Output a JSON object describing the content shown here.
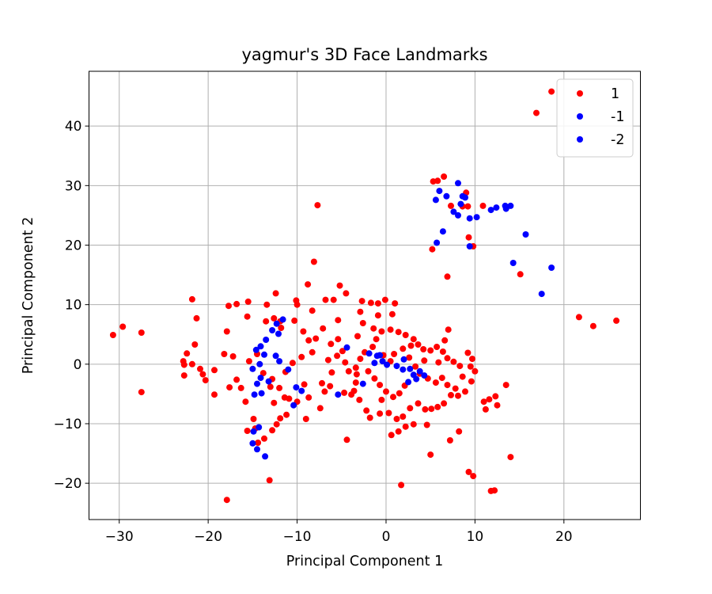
{
  "chart_data": {
    "type": "scatter",
    "title": "yagmur's 3D Face Landmarks",
    "xlabel": "Principal Component 1",
    "ylabel": "Principal Component 2",
    "xlim": [
      -33.4,
      28.6
    ],
    "ylim": [
      -26.1,
      49.2
    ],
    "xticks": [
      -30,
      -20,
      -10,
      0,
      10,
      20
    ],
    "yticks": [
      -20,
      -10,
      0,
      10,
      20,
      30,
      40
    ],
    "xtick_labels": [
      "−30",
      "−20",
      "−10",
      "0",
      "10",
      "20"
    ],
    "ytick_labels": [
      "−20",
      "−10",
      "0",
      "10",
      "20",
      "30",
      "40"
    ],
    "grid": true,
    "legend_position": "top-right",
    "series": [
      {
        "name": "1",
        "color": "#ff0000",
        "points": [
          [
            18.6,
            45.8
          ],
          [
            16.9,
            42.2
          ],
          [
            6.5,
            31.5
          ],
          [
            5.8,
            30.8
          ],
          [
            5.3,
            30.7
          ],
          [
            9.0,
            28.8
          ],
          [
            7.3,
            26.6
          ],
          [
            9.2,
            26.5
          ],
          [
            10.9,
            26.6
          ],
          [
            9.3,
            21.3
          ],
          [
            9.8,
            19.8
          ],
          [
            5.2,
            19.3
          ],
          [
            6.9,
            14.7
          ],
          [
            15.1,
            15.1
          ],
          [
            21.7,
            7.9
          ],
          [
            23.3,
            6.4
          ],
          [
            25.9,
            7.3
          ],
          [
            -7.7,
            26.7
          ],
          [
            -8.1,
            17.2
          ],
          [
            -8.8,
            13.4
          ],
          [
            -5.2,
            13.2
          ],
          [
            -4.5,
            11.9
          ],
          [
            -12.4,
            11.9
          ],
          [
            -21.8,
            10.9
          ],
          [
            -15.5,
            10.5
          ],
          [
            -16.8,
            10.1
          ],
          [
            -17.7,
            9.8
          ],
          [
            -29.6,
            6.3
          ],
          [
            -30.7,
            4.9
          ],
          [
            -27.5,
            5.3
          ],
          [
            -21.3,
            7.7
          ],
          [
            -21.5,
            3.3
          ],
          [
            -22.4,
            1.8
          ],
          [
            -22.8,
            0.5
          ],
          [
            -22.7,
            -0.1
          ],
          [
            -21.8,
            0.0
          ],
          [
            -22.7,
            -1.9
          ],
          [
            -20.9,
            -0.8
          ],
          [
            -20.6,
            -1.7
          ],
          [
            -20.3,
            -2.7
          ],
          [
            -19.3,
            -1.0
          ],
          [
            -19.3,
            -5.1
          ],
          [
            -17.6,
            -3.9
          ],
          [
            -18.2,
            1.7
          ],
          [
            -17.2,
            1.3
          ],
          [
            -17.9,
            5.5
          ],
          [
            -16.8,
            -2.6
          ],
          [
            -16.3,
            -4.0
          ],
          [
            -15.4,
            0.5
          ],
          [
            -15.8,
            -6.3
          ],
          [
            -15.6,
            -11.2
          ],
          [
            -14.9,
            -9.2
          ],
          [
            -14.7,
            -10.8
          ],
          [
            -14.4,
            -13.2
          ],
          [
            -13.7,
            -12.5
          ],
          [
            -13.1,
            -19.5
          ],
          [
            -17.9,
            -22.8
          ],
          [
            -27.5,
            -4.7
          ],
          [
            -13.5,
            7.2
          ],
          [
            -12.6,
            7.7
          ],
          [
            -11.9,
            7.2
          ],
          [
            -10.0,
            10.0
          ],
          [
            -10.1,
            10.7
          ],
          [
            -10.3,
            7.3
          ],
          [
            -9.3,
            5.5
          ],
          [
            -8.7,
            4.0
          ],
          [
            -8.3,
            2.0
          ],
          [
            -9.5,
            1.2
          ],
          [
            -10.5,
            0.2
          ],
          [
            -11.3,
            -1.3
          ],
          [
            -12.8,
            -2.5
          ],
          [
            -12.0,
            -4.0
          ],
          [
            -11.4,
            -5.6
          ],
          [
            -10.9,
            -5.8
          ],
          [
            -10.0,
            -6.3
          ],
          [
            -11.2,
            -8.5
          ],
          [
            -11.9,
            -9.1
          ],
          [
            -12.3,
            -10.1
          ],
          [
            -12.8,
            -11.1
          ],
          [
            -7.4,
            -7.4
          ],
          [
            -6.5,
            0.7
          ],
          [
            -6.2,
            3.4
          ],
          [
            -7.1,
            6.0
          ],
          [
            -6.8,
            10.8
          ],
          [
            -5.9,
            10.8
          ],
          [
            -5.4,
            7.4
          ],
          [
            -5.4,
            4.2
          ],
          [
            -4.9,
            2.2
          ],
          [
            -4.6,
            0.3
          ],
          [
            -4.2,
            -1.2
          ],
          [
            -4.7,
            -4.8
          ],
          [
            -3.6,
            -4.5
          ],
          [
            -3.3,
            -1.7
          ],
          [
            -3.2,
            4.7
          ],
          [
            -2.6,
            6.9
          ],
          [
            -2.9,
            8.8
          ],
          [
            -2.7,
            10.6
          ],
          [
            -1.7,
            10.3
          ],
          [
            -0.9,
            10.2
          ],
          [
            -0.1,
            10.8
          ],
          [
            1.0,
            10.2
          ],
          [
            0.7,
            8.4
          ],
          [
            -0.9,
            8.2
          ],
          [
            -1.4,
            6.0
          ],
          [
            -0.5,
            5.5
          ],
          [
            0.5,
            5.8
          ],
          [
            1.4,
            5.4
          ],
          [
            2.2,
            4.9
          ],
          [
            3.1,
            4.2
          ],
          [
            3.6,
            3.3
          ],
          [
            4.2,
            2.5
          ],
          [
            5.0,
            2.3
          ],
          [
            5.7,
            2.9
          ],
          [
            6.4,
            2.1
          ],
          [
            6.9,
            1.0
          ],
          [
            7.6,
            0.4
          ],
          [
            8.3,
            -0.3
          ],
          [
            9.5,
            -0.4
          ],
          [
            9.7,
            0.9
          ],
          [
            10.0,
            -1.2
          ],
          [
            9.6,
            -2.9
          ],
          [
            8.9,
            -4.6
          ],
          [
            8.1,
            -5.3
          ],
          [
            7.3,
            -5.2
          ],
          [
            6.5,
            -6.6
          ],
          [
            5.8,
            -7.2
          ],
          [
            5.1,
            -7.5
          ],
          [
            4.4,
            -7.6
          ],
          [
            3.6,
            -6.6
          ],
          [
            2.7,
            -7.4
          ],
          [
            1.9,
            -8.8
          ],
          [
            1.2,
            -9.2
          ],
          [
            0.3,
            -8.2
          ],
          [
            -0.7,
            -8.3
          ],
          [
            -1.8,
            -9.0
          ],
          [
            -2.2,
            -7.8
          ],
          [
            -3.0,
            -6.0
          ],
          [
            -3.9,
            -5.1
          ],
          [
            -6.3,
            -3.7
          ],
          [
            -7.2,
            -3.2
          ],
          [
            -4.4,
            -12.7
          ],
          [
            0.6,
            -11.9
          ],
          [
            1.4,
            -11.3
          ],
          [
            2.2,
            -10.5
          ],
          [
            3.1,
            -10.1
          ],
          [
            4.6,
            -10.2
          ],
          [
            5.0,
            -15.2
          ],
          [
            7.2,
            -12.8
          ],
          [
            8.2,
            -11.3
          ],
          [
            9.3,
            -18.1
          ],
          [
            9.8,
            -18.8
          ],
          [
            11.8,
            -21.3
          ],
          [
            12.2,
            -21.2
          ],
          [
            14.0,
            -15.6
          ],
          [
            13.5,
            -3.5
          ],
          [
            11.6,
            -5.9
          ],
          [
            12.3,
            -5.4
          ],
          [
            11.0,
            -6.3
          ],
          [
            12.5,
            -6.9
          ],
          [
            11.2,
            -7.6
          ],
          [
            1.7,
            -20.3
          ],
          [
            0.5,
            0.5
          ],
          [
            0.9,
            1.7
          ],
          [
            1.9,
            2.6
          ],
          [
            2.6,
            1.1
          ],
          [
            3.3,
            -0.4
          ],
          [
            3.8,
            -1.6
          ],
          [
            4.7,
            -2.4
          ],
          [
            5.6,
            -3.1
          ],
          [
            6.3,
            -2.3
          ],
          [
            6.9,
            -3.5
          ],
          [
            7.8,
            -4.1
          ],
          [
            8.6,
            -2.1
          ],
          [
            9.2,
            1.9
          ],
          [
            -1.5,
            2.9
          ],
          [
            -2.4,
            2.0
          ],
          [
            -2.9,
            0.9
          ],
          [
            -3.4,
            -0.6
          ],
          [
            -2.0,
            -1.2
          ],
          [
            -1.3,
            -2.4
          ],
          [
            -0.7,
            -3.5
          ],
          [
            0.0,
            -4.6
          ],
          [
            0.8,
            -5.5
          ],
          [
            1.5,
            -4.9
          ],
          [
            2.1,
            -3.6
          ],
          [
            -0.3,
            1.5
          ],
          [
            -1.1,
            4.2
          ],
          [
            2.8,
            3.1
          ],
          [
            4.3,
            0.6
          ],
          [
            5.9,
            0.3
          ],
          [
            6.6,
            4.0
          ],
          [
            7.0,
            5.8
          ],
          [
            8.6,
            26.5
          ],
          [
            -15.6,
            8.0
          ],
          [
            -13.4,
            10.0
          ],
          [
            -11.8,
            6.1
          ],
          [
            -14.5,
            1.7
          ],
          [
            -13.8,
            -1.5
          ],
          [
            -13.0,
            -3.8
          ],
          [
            -12.6,
            -6.5
          ],
          [
            -9.2,
            -3.4
          ],
          [
            -8.7,
            -5.6
          ],
          [
            -9.0,
            -9.2
          ],
          [
            -6.9,
            -4.6
          ],
          [
            -6.1,
            -1.4
          ],
          [
            -5.5,
            1.4
          ],
          [
            -8.3,
            9.0
          ],
          [
            -7.9,
            4.3
          ],
          [
            -3.4,
            -3.1
          ],
          [
            -0.5,
            -6.0
          ]
        ]
      },
      {
        "name": "-1",
        "color": "#0000ff",
        "points": [
          [
            8.1,
            30.4
          ],
          [
            6.0,
            29.1
          ],
          [
            6.8,
            28.2
          ],
          [
            5.6,
            27.6
          ],
          [
            8.6,
            28.2
          ],
          [
            8.9,
            28.0
          ],
          [
            8.4,
            26.9
          ],
          [
            7.6,
            25.6
          ],
          [
            8.1,
            25.0
          ],
          [
            9.4,
            24.5
          ],
          [
            10.2,
            24.7
          ],
          [
            11.8,
            25.9
          ],
          [
            12.4,
            26.3
          ],
          [
            13.4,
            26.6
          ],
          [
            14.0,
            26.6
          ],
          [
            13.5,
            26.1
          ],
          [
            6.4,
            22.3
          ],
          [
            5.7,
            20.4
          ],
          [
            9.4,
            19.8
          ],
          [
            15.7,
            21.8
          ],
          [
            14.3,
            17.0
          ],
          [
            18.6,
            16.2
          ],
          [
            17.5,
            11.8
          ],
          [
            -11.6,
            7.5
          ],
          [
            -12.3,
            6.8
          ],
          [
            -12.8,
            5.7
          ],
          [
            -12.1,
            5.1
          ],
          [
            -13.5,
            4.1
          ],
          [
            -14.1,
            3.0
          ],
          [
            -14.6,
            2.4
          ],
          [
            -13.7,
            1.6
          ],
          [
            -12.4,
            1.4
          ],
          [
            -12.0,
            0.5
          ],
          [
            -14.2,
            0.0
          ],
          [
            -15.0,
            -0.8
          ],
          [
            -14.1,
            -2.3
          ],
          [
            -13.2,
            -2.9
          ],
          [
            -14.5,
            -3.3
          ],
          [
            -14.0,
            -4.9
          ],
          [
            -14.8,
            -5.1
          ],
          [
            -14.3,
            -10.6
          ],
          [
            -14.9,
            -11.3
          ],
          [
            -15.0,
            -13.3
          ],
          [
            -14.5,
            -14.3
          ],
          [
            -13.6,
            -15.5
          ],
          [
            -10.4,
            -6.9
          ],
          [
            -10.1,
            -3.9
          ],
          [
            -9.5,
            -4.5
          ],
          [
            -11.0,
            -0.9
          ],
          [
            -4.4,
            2.8
          ],
          [
            -5.4,
            -5.1
          ],
          [
            -2.6,
            -3.3
          ],
          [
            -1.3,
            0.2
          ],
          [
            -1.9,
            1.8
          ],
          [
            -1.0,
            1.4
          ],
          [
            -0.4,
            0.5
          ],
          [
            0.1,
            -0.1
          ],
          [
            1.2,
            -0.3
          ],
          [
            1.9,
            -0.9
          ],
          [
            2.7,
            -0.8
          ],
          [
            3.1,
            -1.8
          ],
          [
            3.8,
            -1.2
          ],
          [
            4.3,
            -1.9
          ],
          [
            3.4,
            -2.5
          ],
          [
            2.5,
            -3.0
          ],
          [
            2.0,
            0.8
          ],
          [
            -0.7,
            1.5
          ]
        ]
      },
      {
        "name": "-2",
        "color": "#0000ff",
        "points": []
      }
    ]
  }
}
